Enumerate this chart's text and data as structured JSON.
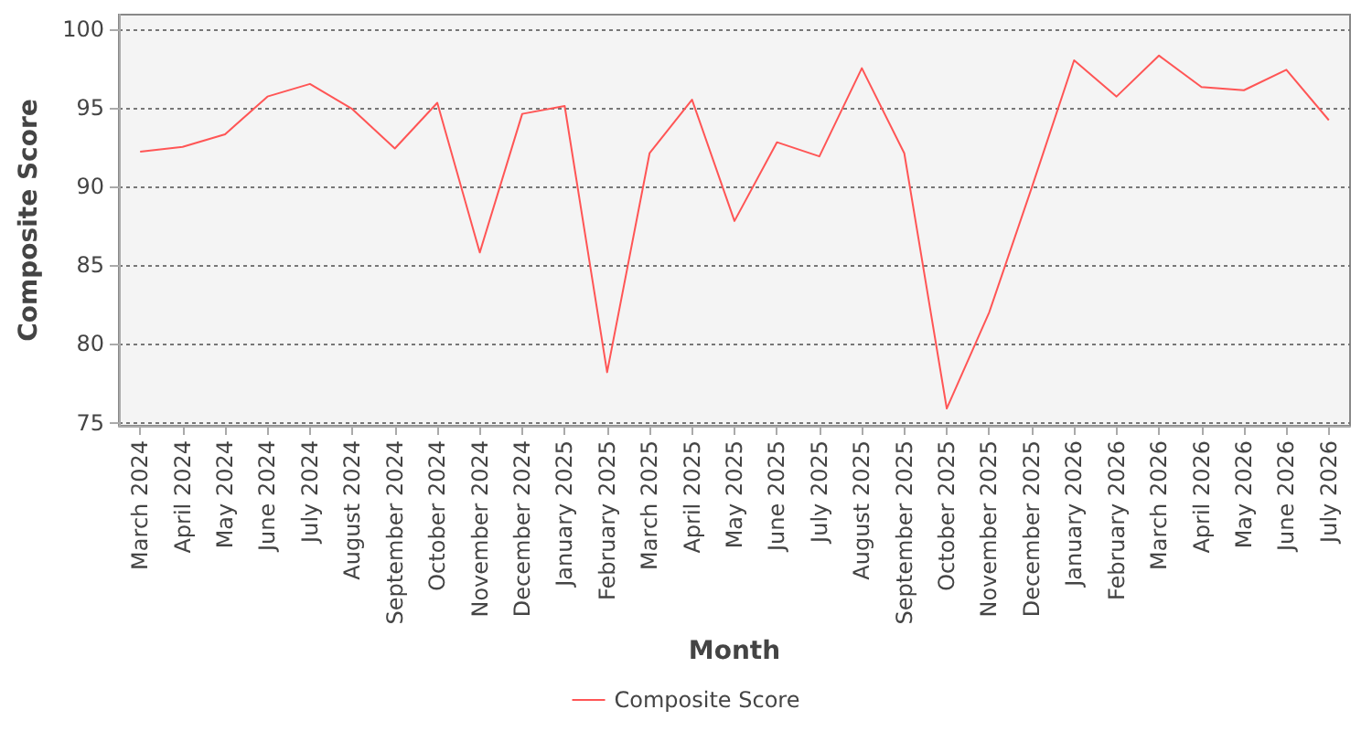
{
  "chart_data": {
    "type": "line",
    "xlabel": "Month",
    "ylabel": "Composite Score",
    "categories": [
      "March 2024",
      "April 2024",
      "May 2024",
      "June 2024",
      "July 2024",
      "August 2024",
      "September 2024",
      "October 2024",
      "November 2024",
      "December 2024",
      "January 2025",
      "February 2025",
      "March 2025",
      "April 2025",
      "May 2025",
      "June 2025",
      "July 2025",
      "August 2025",
      "September 2025",
      "October 2025",
      "November 2025",
      "December 2025",
      "January 2026",
      "February 2026",
      "March 2026",
      "April 2026",
      "May 2026",
      "June 2026",
      "July 2026"
    ],
    "series": [
      {
        "name": "Composite Score",
        "color": "#ff5555",
        "values": [
          92.2,
          92.5,
          93.3,
          95.7,
          96.5,
          94.9,
          92.4,
          95.3,
          85.8,
          94.6,
          95.1,
          78.2,
          92.1,
          95.5,
          87.8,
          92.8,
          91.9,
          97.5,
          92.1,
          75.9,
          82.0,
          89.9,
          98.0,
          95.7,
          98.3,
          96.3,
          96.1,
          97.4,
          94.2
        ]
      }
    ],
    "ylim": [
      74.8,
      100.9
    ],
    "yticks": [
      75,
      80,
      85,
      90,
      95,
      100
    ],
    "grid": "y",
    "legend": "bottom",
    "marker": "none",
    "line_style": "solid"
  }
}
